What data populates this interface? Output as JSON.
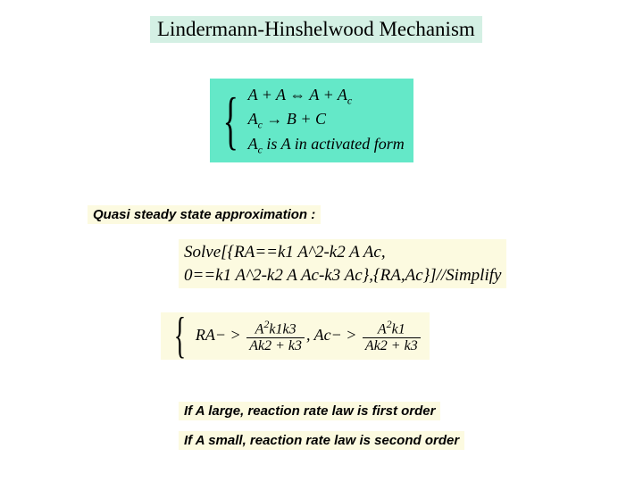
{
  "colors": {
    "bg_white": "#ffffff",
    "title_bg": "#d4f0e4",
    "mech_bg": "#64e8c8",
    "pale_bg": "#fcfae0",
    "text": "#000000"
  },
  "title": "Lindermann-Hinshelwood Mechanism",
  "mechanism": {
    "line1_pre": "A + A ⇔ A + A",
    "line1_sub": "c",
    "line2_pre": "A",
    "line2_sub": "c",
    "line2_post": " → B + C",
    "line3_pre": "A",
    "line3_sub": "c",
    "line3_post": " is A in activated form"
  },
  "quasi_label": "Quasi steady state approximation :",
  "solve": {
    "line1": "Solve[{RA==k1 A^2-k2 A Ac,",
    "line2": "0==k1 A^2-k2 A Ac-k3 Ac},{RA,Ac}]//Simplify"
  },
  "result": {
    "ra_label": "RA− > ",
    "ra_num": "A",
    "ra_num_sup": "2",
    "ra_num_tail": "k1k3",
    "ra_den": "Ak2 + k3",
    "ac_label": ", Ac− > ",
    "ac_num": "A",
    "ac_num_sup": "2",
    "ac_num_tail": "k1",
    "ac_den": "Ak2 + k3"
  },
  "notes": {
    "n1": "If A large, reaction rate law is first order",
    "n2": "If A small, reaction rate law is second order"
  }
}
